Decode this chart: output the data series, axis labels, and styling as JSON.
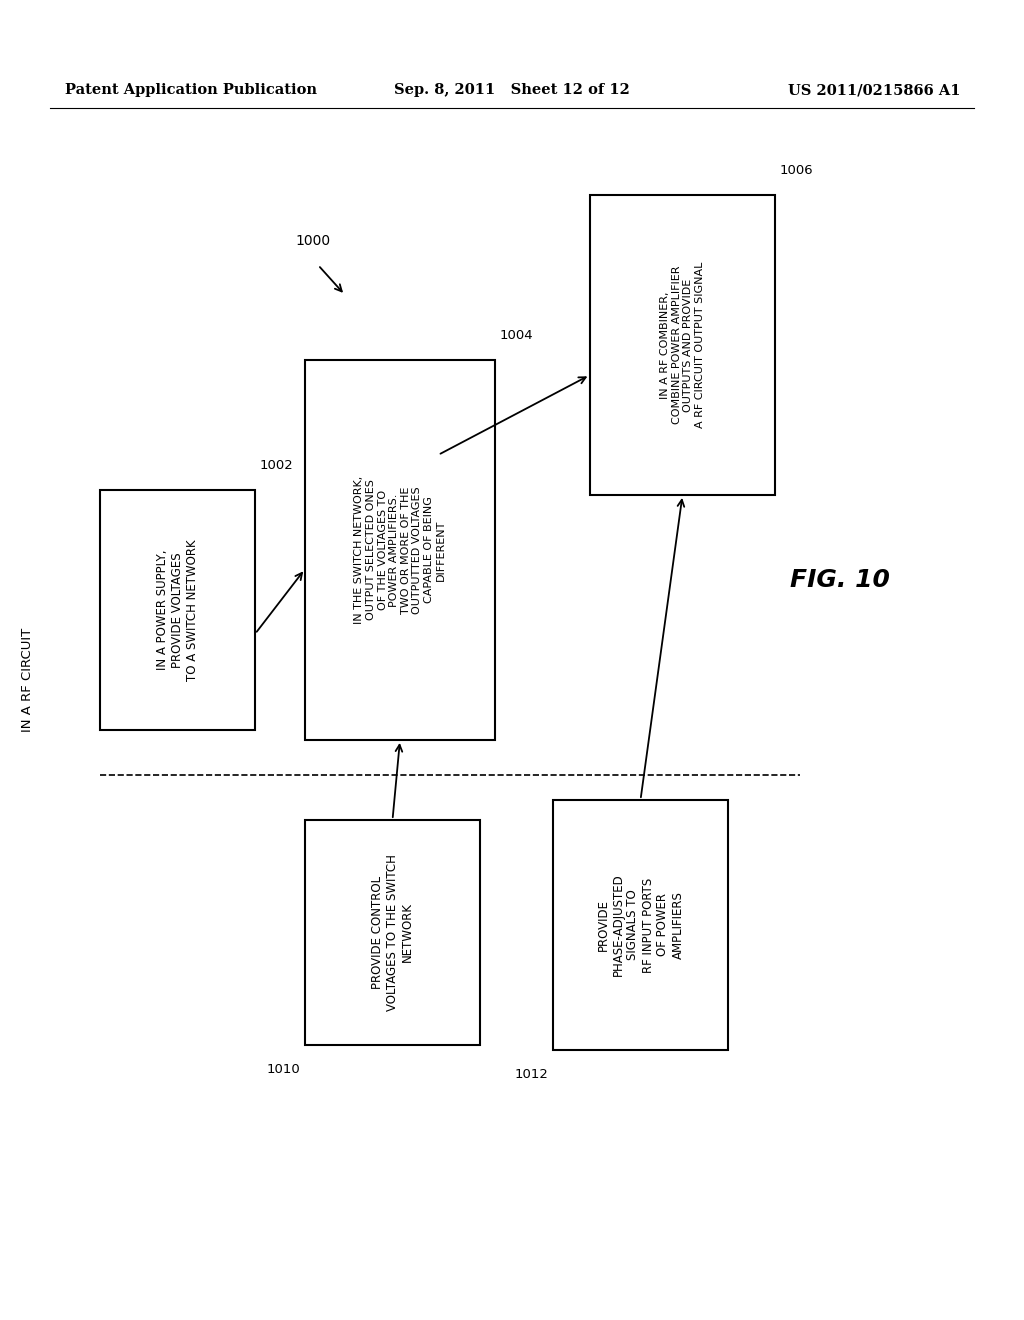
{
  "background_color": "#ffffff",
  "header_left": "Patent Application Publication",
  "header_center": "Sep. 8, 2011   Sheet 12 of 12",
  "header_right": "US 2011/0215866 A1",
  "fig_label": "FIG. 10",
  "outer_label": "IN A RF CIRCUIT"
}
